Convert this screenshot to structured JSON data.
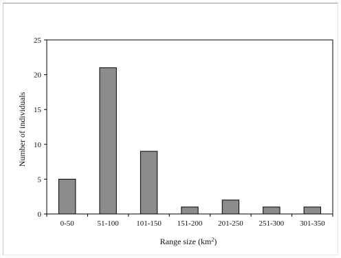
{
  "chart_data": {
    "type": "bar",
    "categories": [
      "0-50",
      "51-100",
      "101-150",
      "151-200",
      "201-250",
      "251-300",
      "301-350"
    ],
    "values": [
      5,
      21,
      9,
      1,
      2,
      1,
      1
    ],
    "title": "",
    "xlabel": "Range size (km",
    "xlabel_sup": "2",
    "xlabel_suffix": ")",
    "ylabel": "Number of individuals",
    "ylim": [
      0,
      25
    ],
    "yticks": [
      0,
      5,
      10,
      15,
      20,
      25
    ],
    "grid": false,
    "legend": "none",
    "bar_color": "#8c8c8c",
    "bar_edge_color": "#000000"
  }
}
